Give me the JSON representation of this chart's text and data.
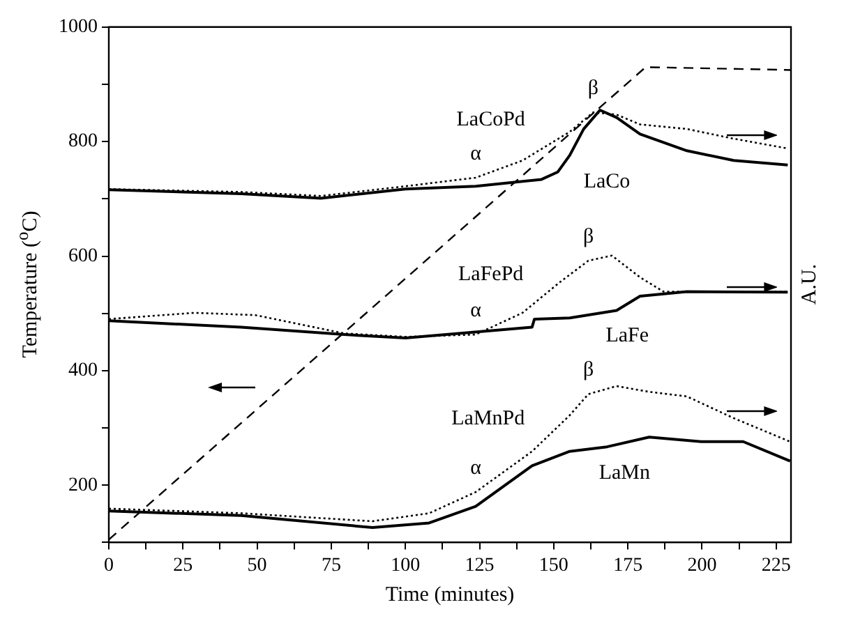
{
  "chart_data": {
    "type": "line",
    "xlabel": "Time (minutes)",
    "ylabel": "Temperature ($^{o}$C)",
    "y2label": "A.U.",
    "xlim": [
      0,
      230
    ],
    "xticks": [
      0,
      {
        "value": 12.5,
        "label": null
      },
      25,
      {
        "value": 37.5,
        "label": null
      },
      50,
      {
        "value": 62.5,
        "label": null
      },
      75,
      {
        "value": 87.5,
        "label": null
      },
      100,
      {
        "value": 112.5,
        "label": null
      },
      125,
      {
        "value": 137.5,
        "label": null
      },
      150,
      {
        "value": 162.5,
        "label": null
      },
      175,
      {
        "value": 187.5,
        "label": null
      },
      200,
      {
        "value": 212.5,
        "label": null
      },
      225
    ],
    "ylim": [
      100,
      1000
    ],
    "yticks": [
      {
        "value": 100,
        "label": null
      },
      200,
      {
        "value": 300,
        "label": null
      },
      400,
      {
        "value": 500,
        "label": null
      },
      600,
      {
        "value": 700,
        "label": null
      },
      800,
      {
        "value": 900,
        "label": null
      },
      1000
    ],
    "grid": false,
    "legend": false,
    "series": [
      {
        "color": "#000000",
        "line_style": "dashed",
        "x": [
          0,
          181,
          230
        ],
        "values": [
          105,
          930,
          925
        ]
      },
      {
        "name": "LaCo",
        "color": "#000000",
        "line_style": "solid",
        "x": [
          0,
          44.6,
          71.5,
          100,
          123.7,
          145.9,
          151.4,
          155.4,
          160.1,
          165.6,
          171.2,
          179.1,
          194.9,
          210.7,
          228.9
        ],
        "values": [
          716,
          709,
          701,
          717,
          722,
          734,
          747,
          776,
          822,
          855,
          842,
          813,
          784,
          767,
          759
        ]
      },
      {
        "name": "LaCoPd",
        "color": "#000000",
        "line_style": "dotted",
        "x": [
          0,
          44.6,
          71.5,
          100,
          123.7,
          139.5,
          155.4,
          163.3,
          171.2,
          179.1,
          194.9,
          210.7,
          228.9
        ],
        "values": [
          717,
          712,
          705,
          722,
          737,
          767,
          817,
          851,
          847,
          830,
          822,
          805,
          788
        ]
      },
      {
        "name": "LaFe",
        "color": "#000000",
        "line_style": "solid",
        "x": [
          0,
          44.6,
          79.4,
          100,
          142.7,
          143.5,
          155.4,
          171.2,
          179.1,
          194.9,
          228.9
        ],
        "values": [
          487,
          476,
          463,
          457,
          476,
          490,
          492,
          505,
          530,
          538,
          537
        ]
      },
      {
        "name": "LaFePd",
        "color": "#000000",
        "line_style": "dotted",
        "x": [
          0,
          28.8,
          49.4,
          79.4,
          100,
          123.7,
          139.5,
          152.2,
          161.7,
          169.6,
          179.1,
          187,
          228.9
        ],
        "values": [
          490,
          501,
          497,
          465,
          459,
          463,
          501,
          555,
          592,
          601,
          563,
          538,
          538
        ]
      },
      {
        "name": "LaMn",
        "color": "#000000",
        "line_style": "solid",
        "x": [
          0,
          44.6,
          88.9,
          108,
          123.7,
          142.7,
          155.4,
          168,
          182.2,
          199.7,
          213.9,
          229.7
        ],
        "values": [
          155,
          147,
          126,
          134,
          163,
          234,
          259,
          267,
          284,
          276,
          276,
          242
        ]
      },
      {
        "name": "LaMnPd",
        "color": "#000000",
        "line_style": "dotted",
        "x": [
          0,
          44.6,
          88.9,
          108,
          123.7,
          142.7,
          155.4,
          161.7,
          171.2,
          182.2,
          194.9,
          210.7,
          229.7
        ],
        "values": [
          159,
          151,
          137,
          151,
          188,
          259,
          322,
          359,
          373,
          363,
          355,
          317,
          276
        ]
      }
    ],
    "annotations": [
      {
        "text": "α",
        "x": 123.7,
        "y": 737
      },
      {
        "text": "β",
        "x": 163.3,
        "y": 851
      },
      {
        "text": "β",
        "x": 161.7,
        "y": 592
      },
      {
        "text": "α",
        "x": 123.7,
        "y": 463
      },
      {
        "text": "α",
        "x": 123.7,
        "y": 188
      },
      {
        "text": "β",
        "x": 161.7,
        "y": 359
      }
    ]
  }
}
